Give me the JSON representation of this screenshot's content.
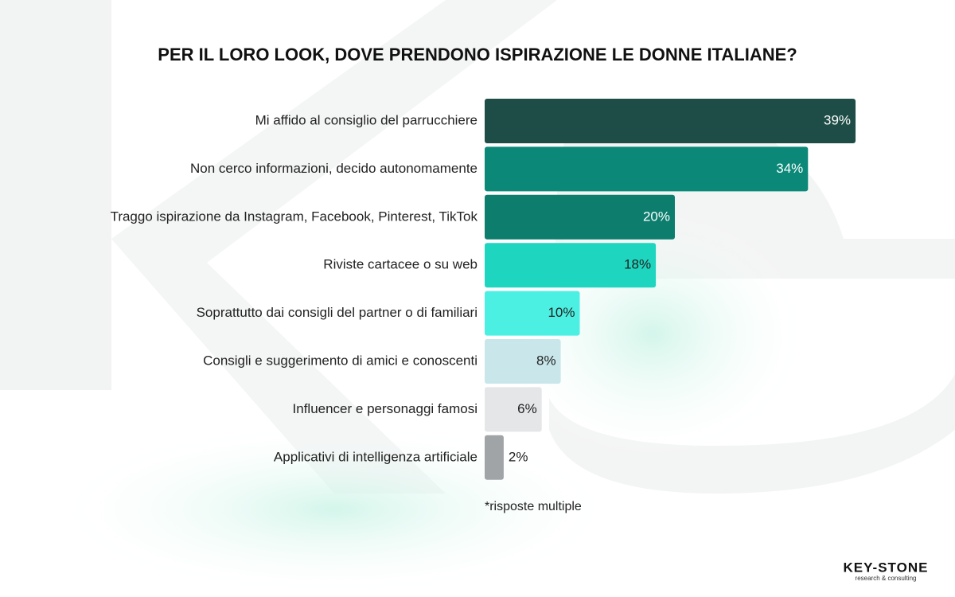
{
  "chart_data": {
    "type": "bar",
    "orientation": "horizontal",
    "title": "PER IL LORO LOOK, DOVE PRENDONO ISPIRAZIONE LE DONNE ITALIANE?",
    "categories": [
      "Mi affido al consiglio del parrucchiere",
      "Non cerco informazioni, decido autonomamente",
      "Traggo ispirazione da Instagram, Facebook, Pinterest, TikTok",
      "Riviste cartacee o su web",
      "Soprattutto dai consigli del partner o di familiari",
      "Consigli e suggerimento di amici e conoscenti",
      "Influencer e personaggi famosi",
      "Applicativi di intelligenza artificiale"
    ],
    "values": [
      39,
      34,
      20,
      18,
      10,
      8,
      6,
      2
    ],
    "value_labels": [
      "39%",
      "34%",
      "20%",
      "18%",
      "10%",
      "8%",
      "6%",
      "2%"
    ],
    "colors": [
      "#1e4d47",
      "#0b8878",
      "#0d7e6e",
      "#1ed6bf",
      "#4cf0e2",
      "#c9e7ea",
      "#e4e6e8",
      "#a0a4a6"
    ],
    "footnote": "*risposte multiple",
    "logo": {
      "name": "KEY-STONE",
      "tagline": "research & consulting"
    }
  }
}
